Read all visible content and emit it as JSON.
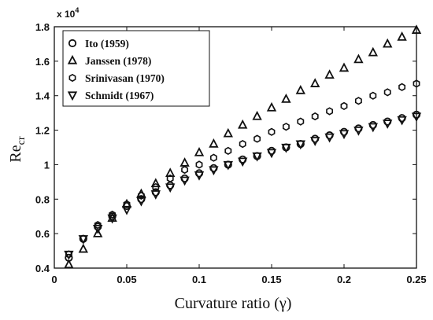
{
  "chart_data": {
    "type": "scatter",
    "xlabel": "Curvature ratio (γ)",
    "ylabel_main": "Re",
    "ylabel_sub": "cr",
    "y_multiplier": {
      "base": "x 10",
      "power": "4"
    },
    "xlim": [
      0,
      0.25
    ],
    "ylim": [
      0.4,
      1.8
    ],
    "x_ticks": [
      0,
      0.05,
      0.1,
      0.15,
      0.2,
      0.25
    ],
    "x_tick_labels": [
      "0",
      "0.05",
      "0.1",
      "0.15",
      "0.2",
      "0.25"
    ],
    "y_ticks": [
      0.4,
      0.6,
      0.8,
      1.0,
      1.2,
      1.4,
      1.6,
      1.8
    ],
    "y_tick_labels": [
      "0.4",
      "0.6",
      "0.8",
      "1",
      "1.2",
      "1.4",
      "1.6",
      "1.8"
    ],
    "legend_position": "top-left",
    "grid": false,
    "series": [
      {
        "name": "Ito (1959)",
        "marker": "circle",
        "x": [
          0.01,
          0.02,
          0.03,
          0.04,
          0.05,
          0.06,
          0.07,
          0.08,
          0.09,
          0.1,
          0.11,
          0.12,
          0.13,
          0.14,
          0.15,
          0.16,
          0.17,
          0.18,
          0.19,
          0.2,
          0.21,
          0.22,
          0.23,
          0.24,
          0.25
        ],
        "values": [
          0.46,
          0.57,
          0.64,
          0.7,
          0.76,
          0.8,
          0.84,
          0.88,
          0.92,
          0.95,
          0.98,
          1.0,
          1.03,
          1.05,
          1.08,
          1.1,
          1.12,
          1.15,
          1.17,
          1.19,
          1.21,
          1.23,
          1.25,
          1.27,
          1.29
        ]
      },
      {
        "name": "Janssen (1978)",
        "marker": "triangle-up",
        "x": [
          0.01,
          0.02,
          0.03,
          0.04,
          0.05,
          0.06,
          0.07,
          0.08,
          0.09,
          0.1,
          0.11,
          0.12,
          0.13,
          0.14,
          0.15,
          0.16,
          0.17,
          0.18,
          0.19,
          0.2,
          0.21,
          0.22,
          0.23,
          0.24,
          0.25
        ],
        "values": [
          0.42,
          0.51,
          0.6,
          0.69,
          0.77,
          0.83,
          0.89,
          0.95,
          1.01,
          1.07,
          1.12,
          1.18,
          1.23,
          1.28,
          1.33,
          1.38,
          1.43,
          1.47,
          1.52,
          1.56,
          1.61,
          1.65,
          1.7,
          1.74,
          1.78
        ]
      },
      {
        "name": "Srinivasan (1970)",
        "marker": "hexagon",
        "x": [
          0.01,
          0.02,
          0.03,
          0.04,
          0.05,
          0.06,
          0.07,
          0.08,
          0.09,
          0.1,
          0.11,
          0.12,
          0.13,
          0.14,
          0.15,
          0.16,
          0.17,
          0.18,
          0.19,
          0.2,
          0.21,
          0.22,
          0.23,
          0.24,
          0.25
        ],
        "values": [
          0.48,
          0.57,
          0.65,
          0.71,
          0.77,
          0.82,
          0.87,
          0.92,
          0.97,
          1.0,
          1.04,
          1.08,
          1.12,
          1.15,
          1.19,
          1.22,
          1.25,
          1.28,
          1.31,
          1.34,
          1.37,
          1.4,
          1.42,
          1.45,
          1.47
        ]
      },
      {
        "name": "Schmidt (1967)",
        "marker": "triangle-down",
        "x": [
          0.01,
          0.02,
          0.03,
          0.04,
          0.05,
          0.06,
          0.07,
          0.08,
          0.09,
          0.1,
          0.11,
          0.12,
          0.13,
          0.14,
          0.15,
          0.16,
          0.17,
          0.18,
          0.19,
          0.2,
          0.21,
          0.22,
          0.23,
          0.24,
          0.25
        ],
        "values": [
          0.48,
          0.57,
          0.63,
          0.69,
          0.74,
          0.79,
          0.83,
          0.87,
          0.91,
          0.94,
          0.97,
          1.0,
          1.02,
          1.05,
          1.07,
          1.1,
          1.12,
          1.14,
          1.16,
          1.18,
          1.2,
          1.22,
          1.24,
          1.26,
          1.28
        ]
      }
    ]
  }
}
